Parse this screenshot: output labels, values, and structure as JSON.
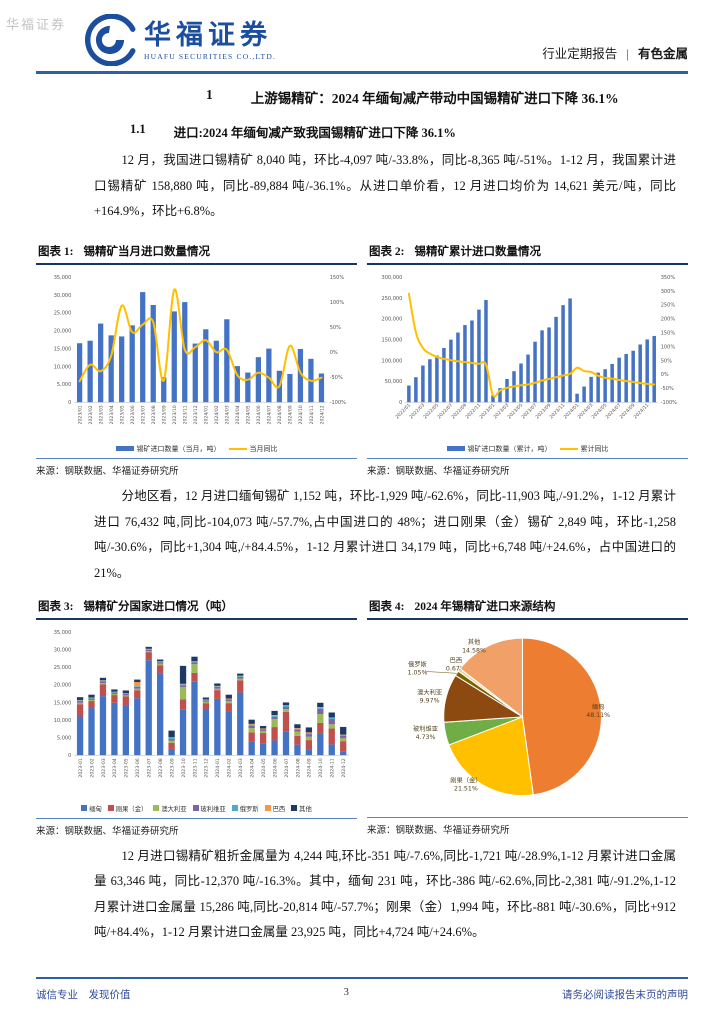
{
  "watermark": "华福证券",
  "header": {
    "logo_cn": "华福证券",
    "logo_en": "HUAFU SECURITIES CO.,LTD.",
    "report_type": "行业定期报告",
    "separator": "|",
    "sector": "有色金属"
  },
  "title": {
    "num": "1",
    "text": "上游锡精矿：2024 年缅甸减产带动中国锡精矿进口下降 36.1%"
  },
  "section": {
    "num": "1.1",
    "text": "进口:2024 年缅甸减产致我国锡精矿进口下降 36.1%"
  },
  "paragraphs": {
    "p1": "12 月，我国进口锡精矿 8,040 吨，环比-4,097 吨/-33.8%，同比-8,365 吨/-51%。1-12 月，我国累计进口锡精矿 158,880 吨，同比-89,884 吨/-36.1%。从进口单价看，12 月进口均价为 14,621 美元/吨，同比+164.9%，环比+6.8%。",
    "p2": "分地区看，12 月进口缅甸锡矿 1,152 吨，环比-1,929 吨/-62.6%，同比-11,903 吨,/-91.2%，1-12 月累计进口 76,432 吨,同比-104,073 吨/-57.7%,占中国进口的 48%；进口刚果（金）锡矿 2,849 吨，环比-1,258 吨/-30.6%，同比+1,304 吨,/+84.4.5%，1-12 月累计进口 34,179 吨，同比+6,748 吨/+24.6%，占中国进口的 21%。",
    "p3": "12 月进口锡精矿粗折金属量为 4,244 吨,环比-351 吨/-7.6%,同比-1,721 吨/-28.9%,1-12 月累计进口金属量 63,346 吨，同比-12,370 吨/-16.3%。其中，缅甸 231 吨，环比-386 吨/-62.6%,同比-2,381 吨/-91.2%,1-12 月累计进口金属量 15,286 吨,同比-20,814 吨/-57.7%；刚果（金）1,994 吨，环比-881 吨/-30.6%，同比+912 吨/+84.4%，1-12 月累计进口金属量 23,925 吨，同比+4,724 吨/+24.6%。"
  },
  "figures": [
    {
      "label": "图表 1:",
      "title": "锡精矿当月进口数量情况",
      "source": "来源：钢联数据、华福证券研究所"
    },
    {
      "label": "图表 2:",
      "title": "锡精矿累计进口数量情况",
      "source": "来源：钢联数据、华福证券研究所"
    },
    {
      "label": "图表 3:",
      "title": "锡精矿分国家进口情况（吨）",
      "source": "来源：钢联数据、华福证券研究所"
    },
    {
      "label": "图表 4:",
      "title": "2024 年锡精矿进口来源结构",
      "source": "来源：钢联数据、华福证券研究所"
    }
  ],
  "footer": {
    "left": "诚信专业　发现价值",
    "page": "3",
    "right": "请务必阅读报告末页的声明"
  },
  "colors": {
    "brand_blue": "#1B4E9E",
    "rule_blue": "#2E5FA8",
    "bar_blue": "#4472C4",
    "line_yellow": "#FFC000",
    "title_underline": "#17375E"
  },
  "chart_data": [
    {
      "type": "bar+line",
      "title": "锡精矿当月进口数量情况",
      "categories": [
        "2023/01",
        "2023/02",
        "2023/03",
        "2023/04",
        "2023/05",
        "2023/06",
        "2023/07",
        "2023/08",
        "2023/09",
        "2023/10",
        "2023/11",
        "2023/12",
        "2024/01",
        "2024/02",
        "2024/03",
        "2024/04",
        "2024/05",
        "2024/06",
        "2024/07",
        "2024/08",
        "2024/09",
        "2024/10",
        "2024/11",
        "2024/12"
      ],
      "series": [
        {
          "name": "锡矿进口数量（当月，吨）",
          "type": "bar",
          "axis": "left",
          "color": "#4472C4",
          "values": [
            16500,
            17200,
            22000,
            18700,
            18400,
            21500,
            30800,
            27200,
            7000,
            25400,
            28000,
            16405,
            20400,
            17200,
            23200,
            10100,
            8300,
            12600,
            15000,
            8800,
            7900,
            14900,
            12137,
            8040
          ]
        },
        {
          "name": "当月同比",
          "type": "line",
          "axis": "right",
          "color": "#FFC000",
          "values": [
            -58,
            -25,
            -38,
            -7,
            93,
            40,
            55,
            60,
            -57,
            125,
            5,
            10,
            24,
            0,
            5,
            -46,
            -55,
            -41,
            -51,
            -68,
            13,
            -41,
            -57,
            -51
          ]
        }
      ],
      "left_axis": {
        "min": 0,
        "max": 35000,
        "step": 5000
      },
      "right_axis": {
        "min": -100,
        "max": 150,
        "step": 50,
        "suffix": "%"
      },
      "label_rotate": -90,
      "label_every": 1,
      "grid": false,
      "legend_position": "bottom"
    },
    {
      "type": "bar+line",
      "title": "锡精矿累计进口数量情况",
      "categories": [
        "2022/01",
        "2022/02",
        "2022/03",
        "2022/04",
        "2022/05",
        "2022/06",
        "2022/07",
        "2022/08",
        "2022/09",
        "2022/10",
        "2022/11",
        "2022/12",
        "2023/01",
        "2023/02",
        "2023/03",
        "2023/04",
        "2023/05",
        "2023/06",
        "2023/07",
        "2023/08",
        "2023/09",
        "2023/10",
        "2023/11",
        "2023/12",
        "2024/01",
        "2024/02",
        "2024/03",
        "2024/04",
        "2024/05",
        "2024/06",
        "2024/07",
        "2024/08",
        "2024/09",
        "2024/10",
        "2024/11",
        "2024/12"
      ],
      "series": [
        {
          "name": "锡矿进口数量（累计，吨）",
          "type": "bar",
          "axis": "left",
          "color": "#4472C4",
          "values": [
            40000,
            60000,
            88000,
            103000,
            112000,
            130000,
            150000,
            167000,
            185000,
            196000,
            222000,
            245000,
            16500,
            33700,
            55700,
            74400,
            92800,
            114300,
            145100,
            172300,
            179300,
            204700,
            232700,
            248764,
            20400,
            37600,
            60800,
            70900,
            79200,
            91800,
            106800,
            115600,
            123500,
            138400,
            150537,
            158880
          ]
        },
        {
          "name": "累计同比",
          "type": "line",
          "axis": "right",
          "color": "#FFC000",
          "values": [
            290,
            152,
            95,
            75,
            63,
            56,
            51,
            47,
            44,
            41,
            38,
            35,
            -75,
            -58,
            -48,
            -43,
            -39,
            -36,
            -30,
            -22,
            -16,
            -10,
            -4,
            2,
            24,
            12,
            9,
            -5,
            -12,
            -15,
            -20,
            -24,
            -27,
            -31,
            -34,
            -36
          ]
        }
      ],
      "left_axis": {
        "min": 0,
        "max": 300000,
        "step": 50000
      },
      "right_axis": {
        "min": -100,
        "max": 350,
        "step": 50,
        "suffix": "%"
      },
      "label_rotate": -45,
      "label_every": 2,
      "grid": false,
      "legend_position": "bottom"
    },
    {
      "type": "stacked-bar",
      "title": "锡精矿分国家进口情况（吨）",
      "categories": [
        "2023-01",
        "2023-02",
        "2023-03",
        "2023-04",
        "2023-05",
        "2023-06",
        "2023-07",
        "2023-08",
        "2023-09",
        "2023-10",
        "2023-11",
        "2023-12",
        "2024-01",
        "2024-02",
        "2024-03",
        "2024-04",
        "2024-05",
        "2024-06",
        "2024-07",
        "2024-08",
        "2024-09",
        "2024-10",
        "2024-11",
        "2024-12"
      ],
      "series": [
        {
          "name": "缅甸",
          "color": "#4472C4",
          "values": [
            11000,
            13400,
            16800,
            14900,
            14000,
            16200,
            27000,
            23200,
            1800,
            12900,
            20900,
            13000,
            16000,
            12300,
            17800,
            4000,
            3400,
            4200,
            6800,
            3000,
            1500,
            6200,
            3081,
            1152
          ]
        },
        {
          "name": "刚果（金）",
          "color": "#C0504D",
          "values": [
            3500,
            2000,
            3300,
            2200,
            2700,
            2200,
            2300,
            2400,
            1700,
            3000,
            2500,
            1800,
            2500,
            2500,
            3500,
            2500,
            2900,
            3800,
            5500,
            2500,
            2800,
            3000,
            4500,
            2849
          ]
        },
        {
          "name": "澳大利亚",
          "color": "#9BBB59",
          "values": [
            400,
            300,
            400,
            300,
            300,
            500,
            300,
            400,
            600,
            3500,
            2500,
            400,
            400,
            600,
            500,
            1200,
            600,
            2300,
            800,
            1200,
            1000,
            2500,
            1200,
            800
          ]
        },
        {
          "name": "玻利维亚",
          "color": "#8064A2",
          "values": [
            500,
            400,
            500,
            400,
            400,
            500,
            400,
            400,
            500,
            500,
            500,
            400,
            500,
            400,
            500,
            700,
            400,
            600,
            600,
            500,
            700,
            1500,
            1500,
            700
          ]
        },
        {
          "name": "俄罗斯",
          "color": "#4BACC6",
          "values": [
            200,
            200,
            200,
            150,
            150,
            200,
            150,
            200,
            300,
            250,
            200,
            150,
            200,
            200,
            200,
            300,
            200,
            300,
            300,
            300,
            300,
            300,
            300,
            250
          ]
        },
        {
          "name": "巴西",
          "color": "#F79646",
          "values": [
            100,
            100,
            100,
            100,
            100,
            1200,
            100,
            100,
            200,
            150,
            100,
            100,
            100,
            100,
            100,
            200,
            100,
            200,
            200,
            200,
            200,
            150,
            150,
            100
          ]
        },
        {
          "name": "其他",
          "color": "#1F3864",
          "values": [
            800,
            800,
            700,
            650,
            750,
            700,
            550,
            500,
            1900,
            5100,
            1300,
            555,
            700,
            1100,
            600,
            1200,
            700,
            1200,
            800,
            1100,
            1400,
            1250,
            1406,
            2189
          ]
        }
      ],
      "left_axis": {
        "min": 0,
        "max": 35000,
        "step": 5000
      },
      "label_rotate": -90,
      "label_every": 1,
      "grid": false,
      "legend_position": "bottom"
    },
    {
      "type": "pie",
      "title": "2024 年锡精矿进口来源结构",
      "slices": [
        {
          "label": "缅甸",
          "value": 48.11,
          "color": "#ED7D31"
        },
        {
          "label": "刚果（金）",
          "value": 21.51,
          "color": "#FFC000"
        },
        {
          "label": "玻利维亚",
          "value": 4.73,
          "color": "#70AD47"
        },
        {
          "label": "澳大利亚",
          "value": 9.97,
          "color": "#8C4A10"
        },
        {
          "label": "俄罗斯",
          "value": 1.05,
          "color": "#7F6000"
        },
        {
          "label": "巴西",
          "value": 0.67,
          "color": "#E8D9A0"
        },
        {
          "label": "其他",
          "value": 14.58,
          "color": "#F1A167"
        }
      ],
      "legend_position": "none"
    }
  ]
}
